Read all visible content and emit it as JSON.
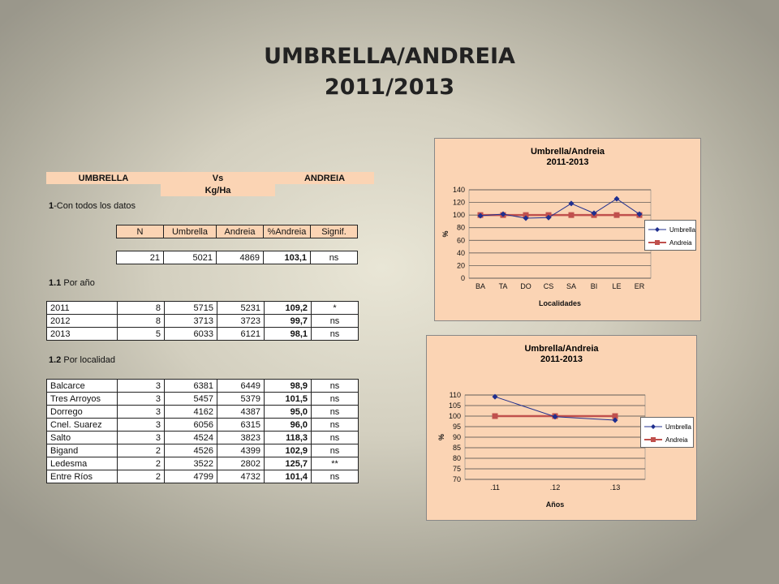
{
  "title": {
    "line1": "UMBRELLA/ANDREIA",
    "line2": "2011/2013"
  },
  "header": {
    "umbrella": "UMBRELLA",
    "vs": "Vs",
    "andreia": "ANDREIA",
    "unit": "Kg/Ha"
  },
  "sections": {
    "all": {
      "prefix": "1",
      "text": "-Con todos los datos"
    },
    "year": {
      "prefix": "1.1",
      "text": " Por año"
    },
    "locality": {
      "prefix": "1.2",
      "text": " Por localidad"
    }
  },
  "columns": [
    "N",
    "Umbrella",
    "Andreia",
    "%Andreia",
    "Signif."
  ],
  "total_row": [
    "21",
    "5021",
    "4869",
    "103,1",
    "ns"
  ],
  "year_rows": [
    [
      "2011",
      "8",
      "5715",
      "5231",
      "109,2",
      "*"
    ],
    [
      "2012",
      "8",
      "3713",
      "3723",
      "99,7",
      "ns"
    ],
    [
      "2013",
      "5",
      "6033",
      "6121",
      "98,1",
      "ns"
    ]
  ],
  "locality_rows": [
    [
      "Balcarce",
      "3",
      "6381",
      "6449",
      "98,9",
      "ns"
    ],
    [
      "Tres Arroyos",
      "3",
      "5457",
      "5379",
      "101,5",
      "ns"
    ],
    [
      "Dorrego",
      "3",
      "4162",
      "4387",
      "95,0",
      "ns"
    ],
    [
      "Cnel. Suarez",
      "3",
      "6056",
      "6315",
      "96,0",
      "ns"
    ],
    [
      "Salto",
      "3",
      "4524",
      "3823",
      "118,3",
      "ns"
    ],
    [
      "Bigand",
      "2",
      "4526",
      "4399",
      "102,9",
      "ns"
    ],
    [
      "Ledesma",
      "2",
      "3522",
      "2802",
      "125,7",
      "**"
    ],
    [
      "Entre Ríos",
      "2",
      "4799",
      "4732",
      "101,4",
      "ns"
    ]
  ],
  "colors": {
    "umbrella": "#1f2f8f",
    "andreia": "#c0504d",
    "chart_bg": "#fbd4b4"
  },
  "chart_data": [
    {
      "type": "line",
      "title": "Umbrella/Andreia",
      "subtitle": "2011-2013",
      "xlabel": "Localidades",
      "ylabel": "%",
      "categories": [
        "BA",
        "TA",
        "DO",
        "CS",
        "SA",
        "BI",
        "LE",
        "ER"
      ],
      "ylim": [
        0,
        140
      ],
      "yticks": [
        0,
        20,
        40,
        60,
        80,
        100,
        120,
        140
      ],
      "grid": true,
      "legend": "right",
      "series": [
        {
          "name": "Umbrella",
          "values": [
            98.9,
            101.5,
            95.0,
            96.0,
            118.3,
            102.9,
            125.7,
            101.4
          ]
        },
        {
          "name": "Andreia",
          "values": [
            100,
            100,
            100,
            100,
            100,
            100,
            100,
            100
          ]
        }
      ]
    },
    {
      "type": "line",
      "title": "Umbrella/Andreia",
      "subtitle": "2011-2013",
      "xlabel": "Años",
      "ylabel": "%",
      "categories": [
        ".11",
        ".12",
        ".13"
      ],
      "ylim": [
        70,
        110
      ],
      "yticks": [
        70,
        75,
        80,
        85,
        90,
        95,
        100,
        105,
        110
      ],
      "grid": true,
      "legend": "right",
      "series": [
        {
          "name": "Umbrella",
          "values": [
            109.2,
            99.7,
            98.1
          ]
        },
        {
          "name": "Andreia",
          "values": [
            100,
            100,
            100
          ]
        }
      ]
    }
  ]
}
